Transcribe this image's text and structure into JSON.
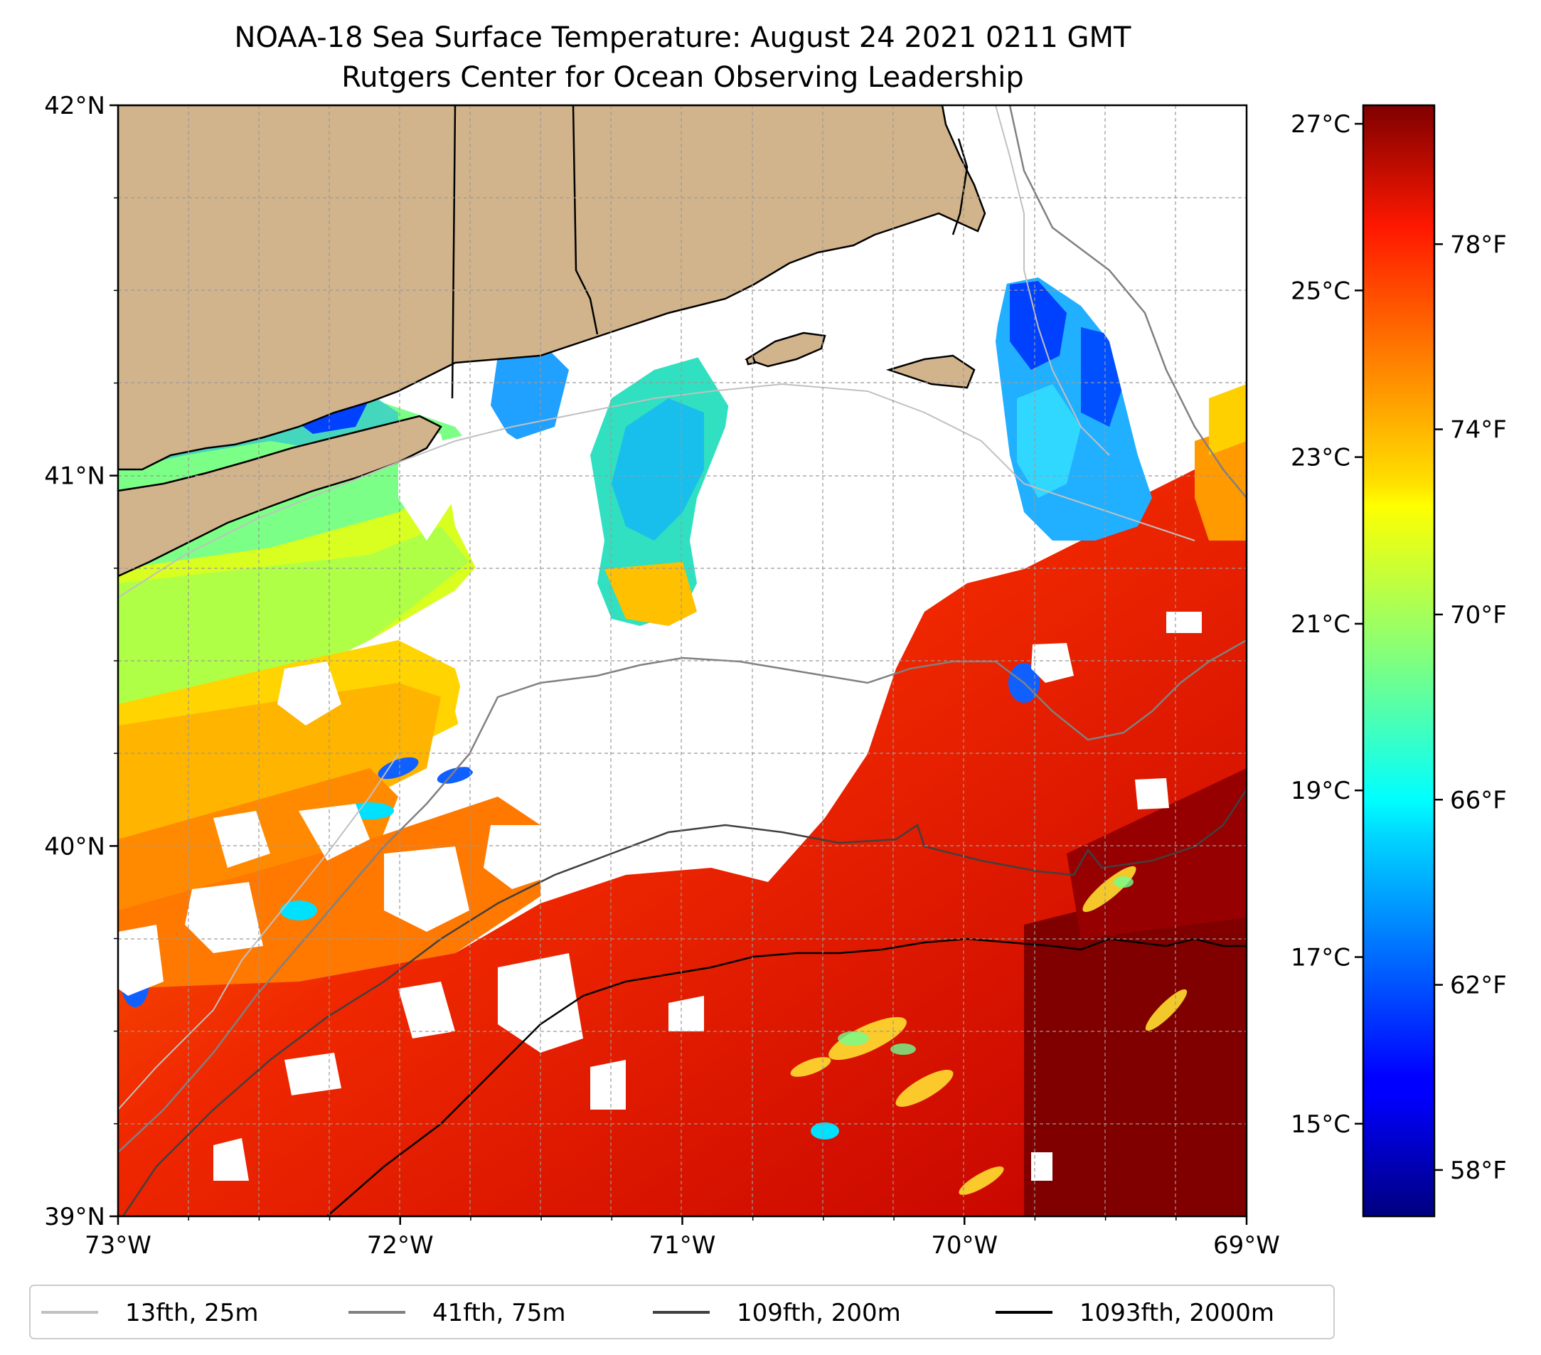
{
  "title": {
    "line1": "NOAA-18 Sea Surface Temperature: August 24 2021 0211 GMT",
    "line2": "Rutgers Center for Ocean Observing Leadership"
  },
  "map": {
    "lon_range": [
      -73,
      -69
    ],
    "lat_range": [
      39,
      42
    ],
    "lon_ticks": [
      {
        "value": -73,
        "label": "73°W"
      },
      {
        "value": -72,
        "label": "72°W"
      },
      {
        "value": -71,
        "label": "71°W"
      },
      {
        "value": -70,
        "label": "70°W"
      },
      {
        "value": -69,
        "label": "69°W"
      }
    ],
    "lat_ticks": [
      {
        "value": 42,
        "label": "42°N"
      },
      {
        "value": 41,
        "label": "41°N"
      },
      {
        "value": 40,
        "label": "40°N"
      },
      {
        "value": 39,
        "label": "39°N"
      }
    ],
    "gridlines": true,
    "land_color": "#d2b48c",
    "colormap": "jet"
  },
  "colorbar": {
    "celsius_ticks": [
      {
        "value": 27,
        "label": "27°C"
      },
      {
        "value": 25,
        "label": "25°C"
      },
      {
        "value": 23,
        "label": "23°C"
      },
      {
        "value": 21,
        "label": "21°C"
      },
      {
        "value": 19,
        "label": "19°C"
      },
      {
        "value": 17,
        "label": "17°C"
      },
      {
        "value": 15,
        "label": "15°C"
      }
    ],
    "fahrenheit_ticks": [
      {
        "value": 78,
        "label": "78°F"
      },
      {
        "value": 74,
        "label": "74°F"
      },
      {
        "value": 70,
        "label": "70°F"
      },
      {
        "value": 66,
        "label": "66°F"
      },
      {
        "value": 62,
        "label": "62°F"
      },
      {
        "value": 58,
        "label": "58°F"
      }
    ],
    "range_f": [
      57,
      81
    ]
  },
  "legend": {
    "placement": "bottom",
    "items": [
      {
        "label": "13fth, 25m",
        "color": "#c0c0c0"
      },
      {
        "label": "41fth, 75m",
        "color": "#808080"
      },
      {
        "label": "109fth, 200m",
        "color": "#404040"
      },
      {
        "label": "1093fth, 2000m",
        "color": "#000000"
      }
    ]
  }
}
